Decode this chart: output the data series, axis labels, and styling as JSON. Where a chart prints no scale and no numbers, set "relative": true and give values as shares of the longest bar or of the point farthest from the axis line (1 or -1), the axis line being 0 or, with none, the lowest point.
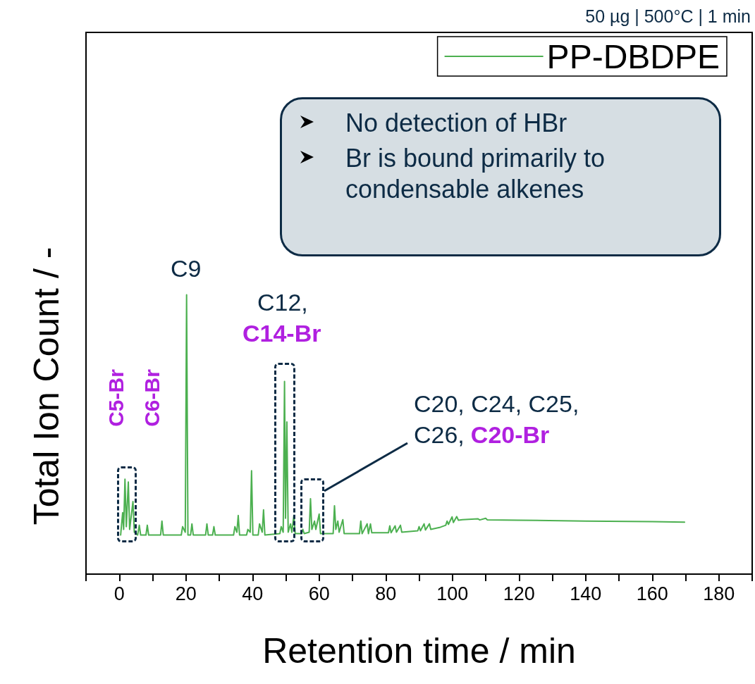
{
  "chart_data": {
    "type": "line",
    "xlabel": "Retention time / min",
    "ylabel": "Total Ion Count / -",
    "relative": true,
    "legend": "top right",
    "xlim": [
      -10,
      190
    ],
    "xticks": [
      {
        "value": -10,
        "label": null
      },
      0,
      {
        "value": 10,
        "label": null
      },
      20,
      {
        "value": 30,
        "label": null
      },
      40,
      {
        "value": 50,
        "label": null
      },
      60,
      {
        "value": 70,
        "label": null
      },
      80,
      {
        "value": 90,
        "label": null
      },
      100,
      {
        "value": 110,
        "label": null
      },
      120,
      {
        "value": 130,
        "label": null
      },
      140,
      {
        "value": 150,
        "label": null
      },
      160,
      {
        "value": 170,
        "label": null
      },
      180,
      {
        "value": 190,
        "label": null
      }
    ],
    "annotations": [
      "50 µg | 500°C | 1 min",
      "No detection of HBr",
      "Br is bound primarily to condensable alkenes",
      "C9",
      "C12,",
      "C14-Br",
      "C5-Br",
      "C6-Br",
      "C20, C24, C25,",
      "C26,",
      "C20-Br"
    ],
    "series": [
      {
        "name": "PP-DBDPE",
        "color": "#4cb050",
        "x": [
          0.4,
          1.0,
          1.3,
          1.7,
          2.1,
          2.7,
          3.1,
          4.1,
          4.5,
          5.5,
          6.0,
          6.4,
          8.0,
          8.4,
          8.8,
          12.4,
          12.8,
          13.2,
          18.6,
          19.0,
          19.8,
          20.2,
          20.6,
          21.4,
          21.8,
          22.2,
          25.9,
          26.3,
          26.7,
          28.0,
          28.4,
          28.8,
          34.3,
          34.7,
          35.3,
          35.7,
          36.1,
          38.2,
          38.6,
          39.3,
          39.7,
          40.1,
          41.7,
          42.1,
          42.9,
          43.3,
          43.7,
          48.2,
          48.6,
          49.2,
          49.6,
          49.9,
          50.3,
          50.7,
          51.4,
          51.8,
          52.4,
          52.8,
          54.7,
          55.1,
          55.5,
          57.0,
          57.4,
          57.8,
          58.6,
          59.0,
          60.0,
          60.4,
          64.2,
          64.6,
          65.0,
          65.6,
          66.0,
          67.1,
          67.5,
          72.1,
          72.5,
          72.9,
          74.4,
          74.8,
          75.4,
          75.8,
          80.8,
          81.2,
          81.6,
          82.8,
          83.2,
          84.4,
          84.8,
          89.6,
          90.0,
          90.4,
          91.5,
          91.9,
          93.1,
          93.5,
          96.4,
          98.0,
          98.4,
          98.8,
          99.9,
          100.3,
          101.3,
          101.8,
          103,
          107.7,
          108.2,
          110,
          110.5,
          120,
          140,
          160,
          169.7
        ],
        "values": [
          0.14,
          0.22,
          0.16,
          0.34,
          0.17,
          0.33,
          0.16,
          0.26,
          0.15,
          0.14,
          0.175,
          0.14,
          0.14,
          0.175,
          0.14,
          0.14,
          0.19,
          0.14,
          0.14,
          0.17,
          0.15,
          1.0,
          0.14,
          0.14,
          0.18,
          0.14,
          0.14,
          0.18,
          0.14,
          0.14,
          0.17,
          0.14,
          0.14,
          0.17,
          0.15,
          0.21,
          0.14,
          0.14,
          0.16,
          0.15,
          0.37,
          0.14,
          0.14,
          0.18,
          0.15,
          0.23,
          0.14,
          0.145,
          0.17,
          0.15,
          0.69,
          0.2,
          0.545,
          0.15,
          0.18,
          0.15,
          0.21,
          0.145,
          0.145,
          0.16,
          0.145,
          0.15,
          0.27,
          0.16,
          0.19,
          0.16,
          0.215,
          0.145,
          0.145,
          0.245,
          0.16,
          0.19,
          0.15,
          0.195,
          0.145,
          0.145,
          0.19,
          0.145,
          0.18,
          0.145,
          0.18,
          0.148,
          0.148,
          0.173,
          0.148,
          0.173,
          0.15,
          0.175,
          0.15,
          0.155,
          0.17,
          0.155,
          0.18,
          0.158,
          0.18,
          0.16,
          0.168,
          0.175,
          0.19,
          0.178,
          0.205,
          0.185,
          0.206,
          0.193,
          0.195,
          0.198,
          0.194,
          0.2,
          0.194,
          0.193,
          0.19,
          0.188,
          0.186
        ]
      }
    ]
  }
}
